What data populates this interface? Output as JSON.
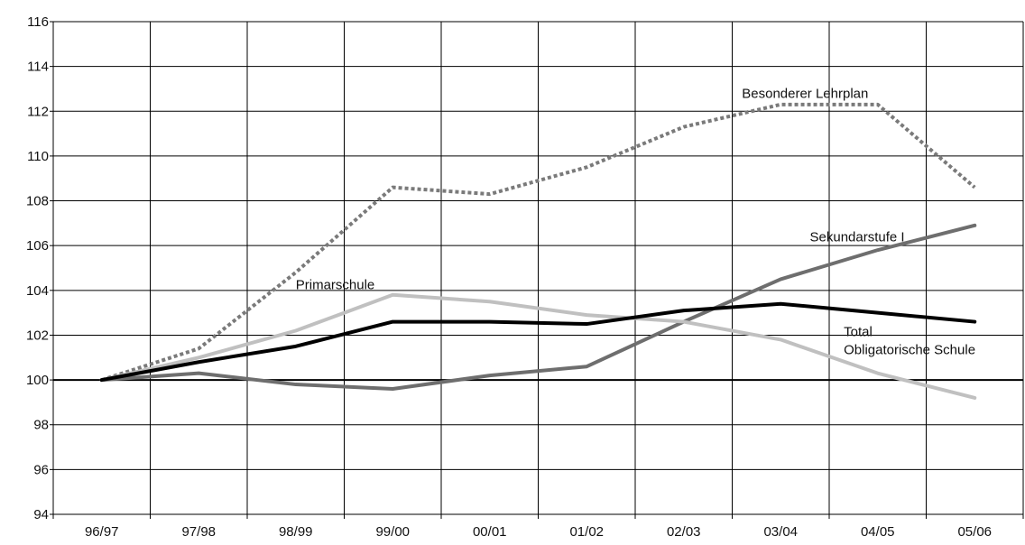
{
  "chart_data": {
    "type": "line",
    "title": "",
    "xlabel": "",
    "ylabel": "",
    "categories": [
      "96/97",
      "97/98",
      "98/99",
      "99/00",
      "00/01",
      "01/02",
      "02/03",
      "03/04",
      "04/05",
      "05/06"
    ],
    "ylim": [
      94,
      116
    ],
    "yticks": [
      94,
      96,
      98,
      100,
      102,
      104,
      106,
      108,
      110,
      112,
      114,
      116
    ],
    "grid": true,
    "legend": "none",
    "series": [
      {
        "name": "Besonderer Lehrplan",
        "color": "#7a7a7a",
        "dash": "dotted",
        "values": [
          100.0,
          101.4,
          104.8,
          108.6,
          108.3,
          109.5,
          111.3,
          112.3,
          112.3,
          108.6
        ]
      },
      {
        "name": "Sekundarstufe I",
        "color": "#6e6e6e",
        "dash": "solid",
        "values": [
          100.0,
          100.3,
          99.8,
          99.6,
          100.2,
          100.6,
          102.6,
          104.5,
          105.8,
          106.9
        ]
      },
      {
        "name": "Primarschule",
        "color": "#c0c0c0",
        "dash": "solid",
        "values": [
          100.0,
          101.0,
          102.2,
          103.8,
          103.5,
          102.9,
          102.6,
          101.8,
          100.3,
          99.2
        ]
      },
      {
        "name": "Total Obligatorische Schule",
        "color": "#000000",
        "dash": "solid",
        "values": [
          100.0,
          100.8,
          101.5,
          102.6,
          102.6,
          102.5,
          103.1,
          103.4,
          103.0,
          102.6
        ]
      }
    ],
    "annotations": [
      {
        "text": "Besonderer Lehrplan",
        "x": 7.1,
        "y": 112.8
      },
      {
        "text": "Sekundarstufe I",
        "x": 7.8,
        "y": 106.4
      },
      {
        "text": "Primarschule",
        "x": 2.5,
        "y": 104.25
      },
      {
        "text": "Total",
        "x": 8.15,
        "y": 102.15
      },
      {
        "text": "Obligatorische Schule",
        "x": 8.15,
        "y": 101.35
      }
    ],
    "reference_line": {
      "y": 100,
      "color": "#000000"
    }
  }
}
